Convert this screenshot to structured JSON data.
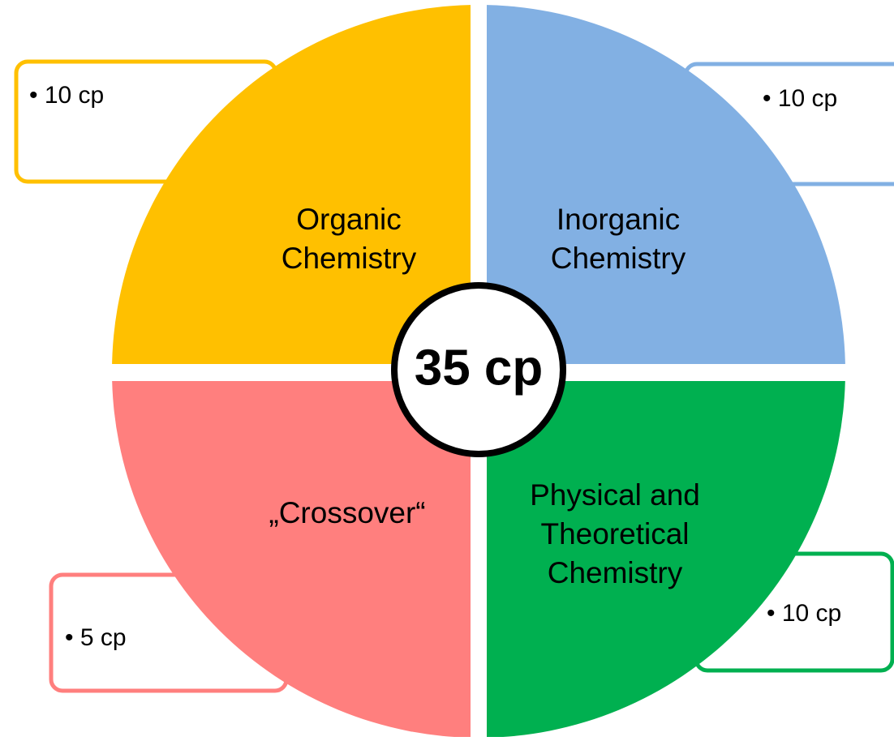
{
  "center": {
    "label": "35 cp"
  },
  "segments": [
    {
      "label_lines": [
        "Organic",
        "Chemistry"
      ],
      "credit": "• 10 cp"
    },
    {
      "label_lines": [
        "Inorganic",
        "Chemistry"
      ],
      "credit": "• 10 cp"
    },
    {
      "label_lines": [
        "„Crossover“"
      ],
      "credit": "• 5 cp"
    },
    {
      "label_lines": [
        "Physical and",
        "Theoretical",
        "Chemistry"
      ],
      "credit": "• 10 cp"
    }
  ]
}
